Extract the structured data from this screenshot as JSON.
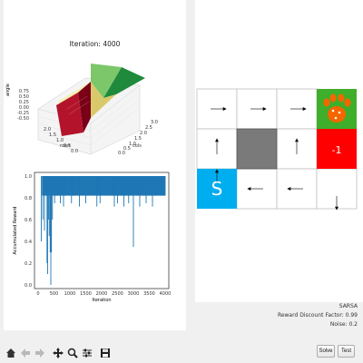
{
  "surface": {
    "title": "Iteration: 4000",
    "xlabel": "cols",
    "ylabel": "rows",
    "zlabel": "angle",
    "z_ticks": [
      "0.75",
      "0.50",
      "0.25",
      "0.00",
      "-0.25",
      "-0.50"
    ],
    "row_ticks": [
      "2.0",
      "1.5",
      "1.0",
      "0.5",
      "0.0"
    ],
    "col_ticks": [
      "0.0",
      "0.5",
      "1.0",
      "1.5",
      "2.0",
      "2.5",
      "3.0"
    ]
  },
  "reward_chart": {
    "xlabel": "Iteration",
    "ylabel": "Accumulated Reward",
    "y_ticks": [
      "1.0",
      "0.8",
      "0.6",
      "0.4",
      "0.2",
      "0.0"
    ],
    "x_ticks": [
      "0",
      "500",
      "1000",
      "1500",
      "2000",
      "2500",
      "3000",
      "3500",
      "4000"
    ]
  },
  "grid": {
    "start_label": "S",
    "pit_label": "-1",
    "colors": {
      "start": "#00aeef",
      "pit": "#ff0000",
      "goal": "#3fae2a",
      "paw": "#f56600",
      "wall": "#7a7a7a"
    }
  },
  "status": {
    "algorithm": "SARSA",
    "discount": "Reward Discount Factor: 0.99",
    "noise": "Noise: 0.2"
  },
  "buttons": {
    "solve": "Solve",
    "test": "Test"
  },
  "chart_data": {
    "type": "bar",
    "xlabel": "Iteration",
    "ylabel": "Accumulated Reward",
    "xlim": [
      0,
      4000
    ],
    "ylim": [
      0,
      1.0
    ],
    "series": [
      {
        "values_description_free": true,
        "x": [
          100,
          150,
          200,
          250,
          280,
          300,
          330,
          350,
          380,
          400,
          420,
          450,
          520,
          600,
          700,
          800,
          850,
          1050,
          1100,
          1300,
          1500,
          1750,
          1850,
          1900,
          1950,
          2350,
          2400,
          2450,
          2500,
          2600,
          2700,
          2750,
          2850,
          3000,
          3100,
          3200,
          3300,
          3400,
          3500,
          3600,
          3700,
          3800,
          3900,
          4000
        ],
        "values": [
          0.4,
          0.6,
          0.5,
          0.9,
          0.2,
          0.1,
          0.6,
          0.45,
          0.3,
          0.0,
          0.3,
          0.6,
          0.75,
          0.82,
          0.75,
          0.72,
          0.82,
          0.75,
          0.82,
          0.72,
          0.75,
          0.82,
          0.72,
          0.82,
          0.75,
          0.82,
          0.72,
          0.82,
          0.75,
          0.82,
          0.72,
          0.82,
          0.75,
          0.35,
          0.82,
          0.72,
          0.82,
          0.75,
          0.82,
          0.72,
          0.82,
          0.95,
          0.82,
          0.82
        ]
      }
    ]
  }
}
